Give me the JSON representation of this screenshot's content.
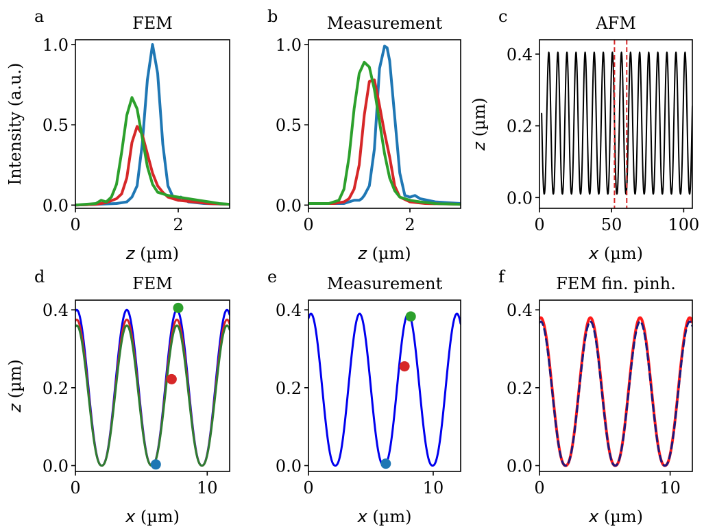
{
  "figure": {
    "panels": [
      {
        "id": "a",
        "letter": "a",
        "title": "FEM",
        "type": "line",
        "xlabel_var": "z",
        "xlabel_unit": " (µm)",
        "ylabel": "Intensity (a.u.)",
        "xlim": [
          0,
          3
        ],
        "ylim": [
          -0.02,
          1.03
        ],
        "xticks": [
          0,
          2
        ],
        "xticklabels": [
          "0",
          "2"
        ],
        "yticks": [
          0.0,
          0.5,
          1.0
        ],
        "yticklabels": [
          "0.0",
          "0.5",
          "1.0"
        ]
      },
      {
        "id": "b",
        "letter": "b",
        "title": "Measurement",
        "type": "line",
        "xlabel_var": "z",
        "xlabel_unit": " (µm)",
        "ylabel": "",
        "xlim": [
          0,
          3
        ],
        "ylim": [
          -0.02,
          1.03
        ],
        "xticks": [
          0,
          2
        ],
        "xticklabels": [
          "0",
          "2"
        ],
        "yticks": [
          0.0,
          0.5,
          1.0
        ],
        "yticklabels": [
          "0.0",
          "0.5",
          "1.0"
        ]
      },
      {
        "id": "c",
        "letter": "c",
        "title": "AFM",
        "type": "line",
        "xlabel_var": "x",
        "xlabel_unit": " (µm)",
        "ylabel_var": "z",
        "ylabel_unit": " (µm)",
        "xlim": [
          0,
          106
        ],
        "ylim": [
          -0.03,
          0.44
        ],
        "xticks": [
          0,
          50,
          100
        ],
        "xticklabels": [
          "0",
          "50",
          "100"
        ],
        "yticks": [
          0.0,
          0.2,
          0.4
        ],
        "yticklabels": [
          "0.0",
          "0.2",
          "0.4"
        ]
      },
      {
        "id": "d",
        "letter": "d",
        "title": "FEM",
        "type": "line",
        "xlabel_var": "x",
        "xlabel_unit": " (µm)",
        "ylabel_var": "z",
        "ylabel_unit": " (µm)",
        "xlim": [
          0,
          11.7
        ],
        "ylim": [
          -0.015,
          0.425
        ],
        "xticks": [
          0,
          10
        ],
        "xticklabels": [
          "0",
          "10"
        ],
        "yticks": [
          0.0,
          0.2,
          0.4
        ],
        "yticklabels": [
          "0.0",
          "0.2",
          "0.4"
        ]
      },
      {
        "id": "e",
        "letter": "e",
        "title": "Measurement",
        "type": "line",
        "xlabel_var": "x",
        "xlabel_unit": " (µm)",
        "ylabel": "",
        "xlim": [
          0,
          12.2
        ],
        "ylim": [
          -0.015,
          0.425
        ],
        "xticks": [
          0,
          10
        ],
        "xticklabels": [
          "0",
          "10"
        ],
        "yticks": [
          0.0,
          0.2,
          0.4
        ],
        "yticklabels": [
          "0.0",
          "0.2",
          "0.4"
        ]
      },
      {
        "id": "f",
        "letter": "f",
        "title": "FEM fin. pinh.",
        "type": "line",
        "xlabel_var": "x",
        "xlabel_unit": " (µm)",
        "ylabel": "",
        "xlim": [
          0,
          11.7
        ],
        "ylim": [
          -0.015,
          0.425
        ],
        "xticks": [
          0,
          10
        ],
        "xticklabels": [
          "0",
          "10"
        ],
        "yticks": [
          0.0,
          0.2,
          0.4
        ],
        "yticklabels": [
          "0.0",
          "0.2",
          "0.4"
        ]
      }
    ]
  },
  "chart_data": [
    {
      "panel": "a",
      "type": "line",
      "series": [
        {
          "color": "#1f77b4",
          "width": 4,
          "x": [
            0,
            0.4,
            0.8,
            1.0,
            1.1,
            1.2,
            1.3,
            1.4,
            1.5,
            1.6,
            1.7,
            1.8,
            1.9,
            2.0,
            2.05,
            2.1,
            2.2,
            2.5,
            3.0
          ],
          "y": [
            0.0,
            0.005,
            0.01,
            0.02,
            0.05,
            0.12,
            0.38,
            0.78,
            1.0,
            0.82,
            0.38,
            0.12,
            0.05,
            0.03,
            0.05,
            0.04,
            0.02,
            0.01,
            0.005
          ]
        },
        {
          "color": "#d62728",
          "width": 4,
          "x": [
            0,
            0.4,
            0.6,
            0.8,
            0.9,
            1.0,
            1.1,
            1.2,
            1.3,
            1.4,
            1.5,
            1.6,
            1.7,
            1.8,
            2.0,
            2.3,
            2.6,
            3.0
          ],
          "y": [
            0.0,
            0.005,
            0.015,
            0.04,
            0.07,
            0.17,
            0.39,
            0.49,
            0.44,
            0.32,
            0.2,
            0.12,
            0.08,
            0.05,
            0.03,
            0.02,
            0.01,
            0.005
          ]
        },
        {
          "color": "#2ca02c",
          "width": 4,
          "x": [
            0,
            0.4,
            0.5,
            0.6,
            0.7,
            0.8,
            0.9,
            1.0,
            1.1,
            1.2,
            1.3,
            1.4,
            1.5,
            1.6,
            1.8,
            2.0,
            2.2,
            2.4,
            2.6,
            2.8,
            3.0
          ],
          "y": [
            0.0,
            0.01,
            0.03,
            0.02,
            0.05,
            0.13,
            0.33,
            0.56,
            0.67,
            0.6,
            0.42,
            0.24,
            0.13,
            0.08,
            0.06,
            0.05,
            0.04,
            0.03,
            0.02,
            0.01,
            0.005
          ]
        }
      ]
    },
    {
      "panel": "b",
      "type": "line",
      "series": [
        {
          "color": "#1f77b4",
          "width": 4,
          "x": [
            0,
            0.5,
            0.7,
            0.8,
            0.9,
            1.0,
            1.05,
            1.1,
            1.2,
            1.3,
            1.4,
            1.5,
            1.55,
            1.6,
            1.7,
            1.8,
            1.9,
            2.0,
            2.1,
            2.2,
            2.5,
            3.0
          ],
          "y": [
            0.01,
            0.01,
            0.01,
            0.02,
            0.03,
            0.03,
            0.04,
            0.06,
            0.12,
            0.35,
            0.85,
            0.99,
            0.98,
            0.9,
            0.55,
            0.2,
            0.06,
            0.05,
            0.06,
            0.04,
            0.02,
            0.01
          ]
        },
        {
          "color": "#d62728",
          "width": 4,
          "x": [
            0,
            0.5,
            0.7,
            0.8,
            0.9,
            1.0,
            1.1,
            1.2,
            1.3,
            1.4,
            1.5,
            1.6,
            1.7,
            1.8,
            2.0,
            2.3,
            3.0
          ],
          "y": [
            0.01,
            0.01,
            0.02,
            0.04,
            0.1,
            0.25,
            0.56,
            0.77,
            0.78,
            0.62,
            0.45,
            0.3,
            0.12,
            0.05,
            0.02,
            0.01,
            0.005
          ]
        },
        {
          "color": "#2ca02c",
          "width": 4,
          "x": [
            0,
            0.4,
            0.6,
            0.7,
            0.8,
            0.9,
            1.0,
            1.1,
            1.2,
            1.3,
            1.4,
            1.5,
            1.6,
            1.7,
            1.8,
            2.0,
            2.2,
            2.5,
            3.0
          ],
          "y": [
            0.01,
            0.01,
            0.03,
            0.1,
            0.3,
            0.6,
            0.82,
            0.89,
            0.86,
            0.72,
            0.52,
            0.32,
            0.17,
            0.09,
            0.05,
            0.03,
            0.02,
            0.01,
            0.005
          ]
        }
      ],
      "annotations": []
    },
    {
      "panel": "c",
      "type": "line",
      "series": [
        {
          "color": "#000000",
          "width": 2,
          "kind": "periodic",
          "period": 6.3,
          "phase": -3.0,
          "min": 0.01,
          "max": 0.405,
          "x_start": 1.5,
          "x_end": 106
        }
      ],
      "vlines": [
        {
          "x": 52.0,
          "color": "#d62728",
          "dashed": true
        },
        {
          "x": 60.5,
          "color": "#d62728",
          "dashed": true
        }
      ]
    },
    {
      "panel": "d",
      "type": "line",
      "series": [
        {
          "color": "#0000ee",
          "width": 3,
          "kind": "periodic",
          "period": 3.8,
          "phase": 2.0,
          "min": 0.0,
          "max": 0.4,
          "x_start": 0,
          "x_end": 11.7
        },
        {
          "color": "#d62728",
          "width": 3,
          "kind": "periodic",
          "period": 3.8,
          "phase": 2.0,
          "min": 0.0,
          "max": 0.375,
          "x_start": 0,
          "x_end": 11.7
        },
        {
          "color": "#2e7d32",
          "width": 3,
          "kind": "periodic",
          "period": 3.8,
          "phase": 2.0,
          "min": 0.0,
          "max": 0.36,
          "x_start": 0,
          "x_end": 11.7
        }
      ],
      "points": [
        {
          "x": 6.1,
          "y": 0.003,
          "color": "#1f77b4"
        },
        {
          "x": 7.3,
          "y": 0.222,
          "color": "#d62728"
        },
        {
          "x": 7.8,
          "y": 0.405,
          "color": "#2ca02c"
        }
      ]
    },
    {
      "panel": "e",
      "type": "line",
      "series": [
        {
          "color": "#0000ee",
          "width": 3,
          "kind": "periodic",
          "period": 3.9,
          "phase": 2.15,
          "min": 0.0,
          "max": 0.39,
          "x_start": 0,
          "x_end": 12.2
        }
      ],
      "points": [
        {
          "x": 6.2,
          "y": 0.005,
          "color": "#1f77b4"
        },
        {
          "x": 7.7,
          "y": 0.255,
          "color": "#d62728"
        },
        {
          "x": 8.2,
          "y": 0.383,
          "color": "#2ca02c"
        }
      ]
    },
    {
      "panel": "f",
      "type": "line",
      "series": [
        {
          "color": "#ff1a1a",
          "width": 4,
          "kind": "periodic",
          "period": 3.8,
          "phase": 2.0,
          "min": 0.0,
          "max": 0.38,
          "x_start": 0,
          "x_end": 11.7
        },
        {
          "color": "#1a1a80",
          "width": 3,
          "dash": "9,6",
          "kind": "periodic",
          "period": 3.8,
          "phase": 2.0,
          "min": 0.0,
          "max": 0.37,
          "x_start": 0,
          "x_end": 11.7
        }
      ]
    }
  ]
}
